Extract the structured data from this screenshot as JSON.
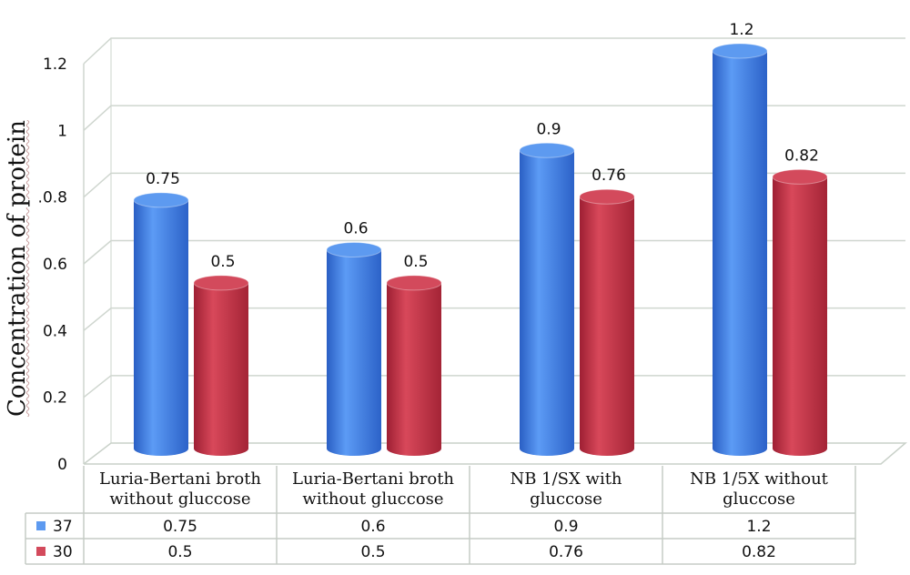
{
  "chart_data": {
    "type": "bar",
    "title": "",
    "xlabel": "",
    "ylabel": "Concentration of protein",
    "ylim": [
      0,
      1.2
    ],
    "yticks": [
      "0",
      "0.2",
      "0.4",
      "0.6",
      ".0.8",
      "1",
      "1.2"
    ],
    "grid": true,
    "legend_placement": "table-left",
    "categories": [
      [
        "Luria-Bertani broth",
        "without gluccose"
      ],
      [
        "Luria-Bertani broth",
        "without gluccose"
      ],
      [
        "NB 1/SX with",
        "gluccose"
      ],
      [
        "NB 1/5X without",
        "gluccose"
      ]
    ],
    "series": [
      {
        "name": "37",
        "color": "#3b7de0",
        "values": [
          0.75,
          0.6,
          0.9,
          1.2
        ],
        "labels": [
          "0.75",
          "0.6",
          "0.9",
          "1.2"
        ]
      },
      {
        "name": "30",
        "color": "#c42e42",
        "values": [
          0.5,
          0.5,
          0.76,
          0.82
        ],
        "labels": [
          "0.5",
          "0.5",
          "0.76",
          "0.82"
        ]
      }
    ]
  }
}
